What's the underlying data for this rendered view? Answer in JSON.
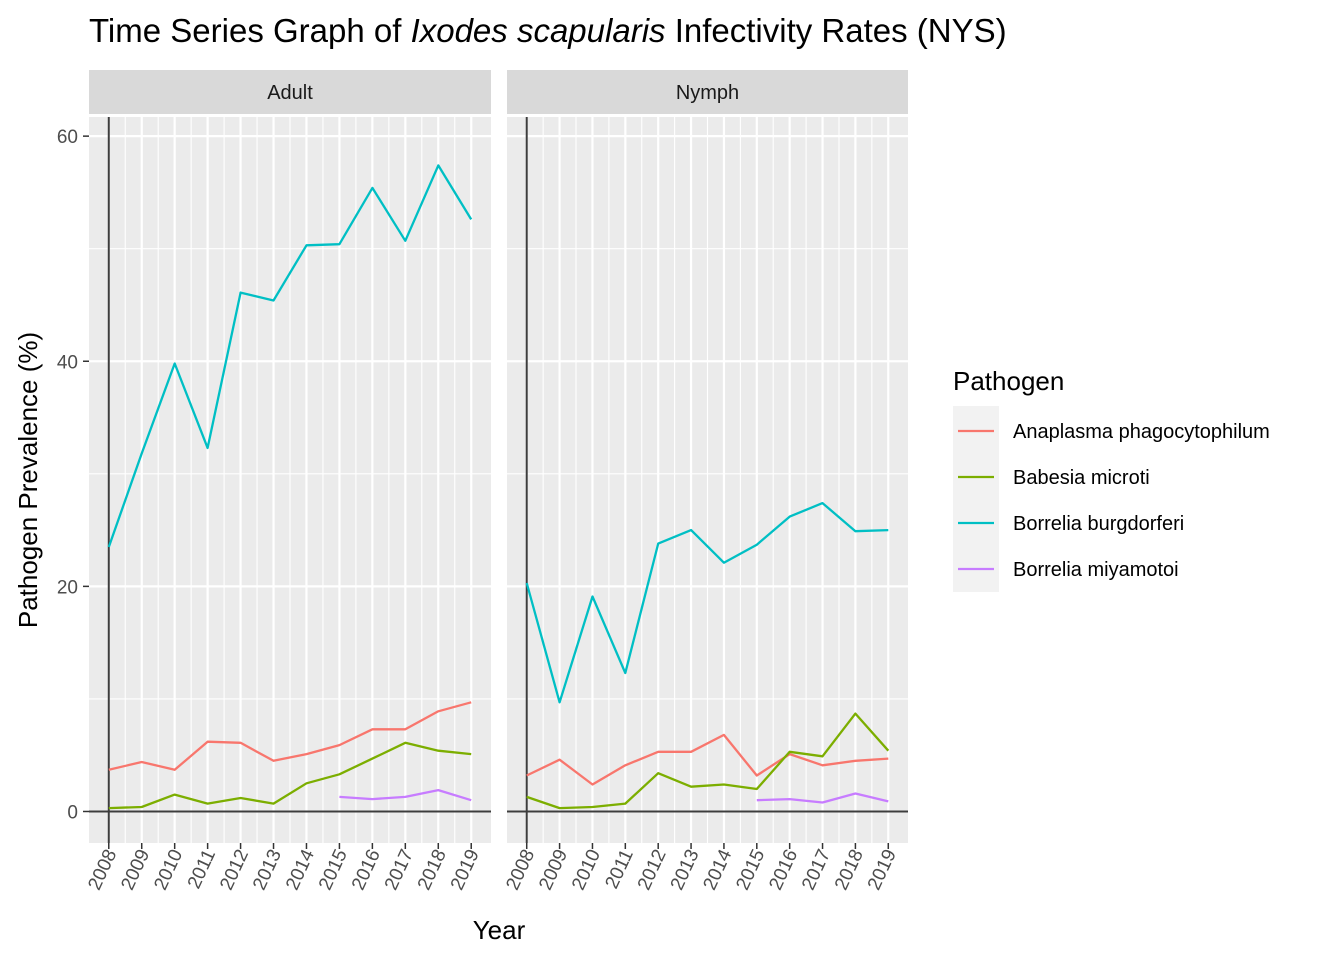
{
  "chart_data": {
    "type": "line",
    "title_parts": {
      "prefix": "Time Series Graph of ",
      "italic": "Ixodes scapularis",
      "suffix": " Infectivity Rates (NYS)"
    },
    "xlabel": "Year",
    "ylabel": "Pathogen Prevalence (%)",
    "ylim": [
      -3,
      62
    ],
    "y_ticks": [
      0,
      20,
      40,
      60
    ],
    "x": [
      "2008",
      "2009",
      "2010",
      "2011",
      "2012",
      "2013",
      "2014",
      "2015",
      "2016",
      "2017",
      "2018",
      "2019"
    ],
    "grid": true,
    "legend": {
      "title": "Pathogen",
      "position": "right",
      "entries": [
        "Anaplasma phagocytophilum",
        "Babesia microti",
        "Borrelia burgdorferi",
        "Borrelia miyamotoi"
      ]
    },
    "colors": {
      "Anaplasma phagocytophilum": "#F8766D",
      "Babesia microti": "#7CAE00",
      "Borrelia burgdorferi": "#00BFC4",
      "Borrelia miyamotoi": "#C77CFF"
    },
    "panels": [
      {
        "label": "Adult",
        "series": [
          {
            "name": "Anaplasma phagocytophilum",
            "values": [
              3.7,
              4.4,
              3.7,
              6.2,
              6.1,
              4.5,
              5.1,
              5.9,
              7.3,
              7.3,
              8.9,
              9.7
            ]
          },
          {
            "name": "Babesia microti",
            "values": [
              0.3,
              0.4,
              1.5,
              0.7,
              1.2,
              0.7,
              2.5,
              3.3,
              4.7,
              6.1,
              5.4,
              5.1
            ]
          },
          {
            "name": "Borrelia burgdorferi",
            "values": [
              23.5,
              31.8,
              39.8,
              32.3,
              46.1,
              45.4,
              50.3,
              50.4,
              55.4,
              50.7,
              57.4,
              52.6
            ]
          },
          {
            "name": "Borrelia miyamotoi",
            "values": [
              null,
              null,
              null,
              null,
              null,
              null,
              null,
              1.3,
              1.1,
              1.3,
              1.9,
              1.0
            ]
          }
        ]
      },
      {
        "label": "Nymph",
        "series": [
          {
            "name": "Anaplasma phagocytophilum",
            "values": [
              3.2,
              4.6,
              2.4,
              4.1,
              5.3,
              5.3,
              6.8,
              3.2,
              5.1,
              4.1,
              4.5,
              4.7
            ]
          },
          {
            "name": "Babesia microti",
            "values": [
              1.3,
              0.3,
              0.4,
              0.7,
              3.4,
              2.2,
              2.4,
              2.0,
              5.3,
              4.9,
              8.7,
              5.4
            ]
          },
          {
            "name": "Borrelia burgdorferi",
            "values": [
              20.3,
              9.7,
              19.1,
              12.3,
              23.8,
              25.0,
              22.1,
              23.7,
              26.2,
              27.4,
              24.9,
              25.0
            ]
          },
          {
            "name": "Borrelia miyamotoi",
            "values": [
              null,
              null,
              null,
              null,
              null,
              null,
              null,
              1.0,
              1.1,
              0.8,
              1.6,
              0.9
            ]
          }
        ]
      }
    ]
  }
}
